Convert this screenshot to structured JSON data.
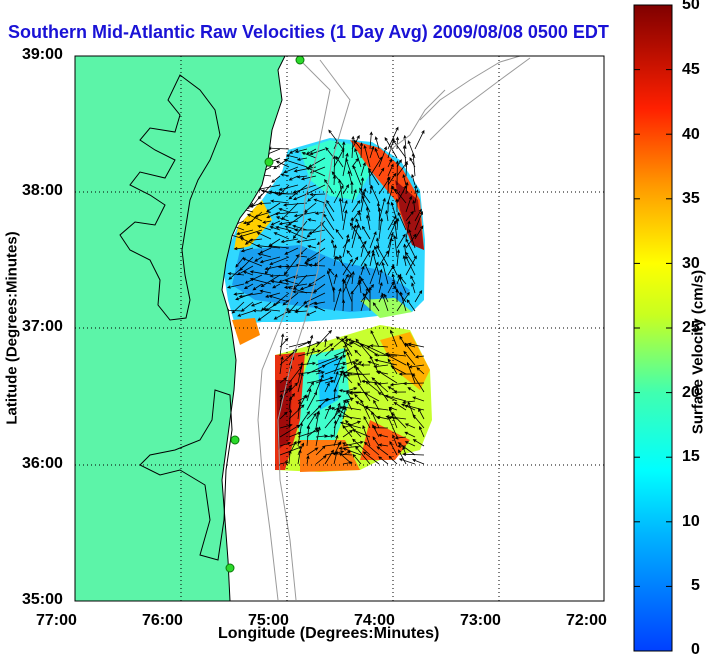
{
  "title": "Southern Mid-Atlantic Raw Velocities (1 Day Avg) 2009/08/08 0500 EDT",
  "x_axis": {
    "label": "Longitude (Degrees:Minutes)",
    "ticks": [
      "77:00",
      "76:00",
      "75:00",
      "74:00",
      "73:00",
      "72:00"
    ]
  },
  "y_axis": {
    "label": "Latitude (Degrees:Minutes)",
    "ticks": [
      "39:00",
      "38:00",
      "37:00",
      "36:00",
      "35:00"
    ]
  },
  "colorbar": {
    "label": "Surface Velocity (cm/s)",
    "ticks": [
      "50",
      "45",
      "40",
      "35",
      "30",
      "25",
      "20",
      "15",
      "10",
      "5",
      "0"
    ],
    "range": [
      0,
      50
    ],
    "colors": [
      "#0000ff",
      "#00c8ff",
      "#32ffcc",
      "#ffff00",
      "#ff8c00",
      "#ff0000",
      "#800000"
    ]
  },
  "map": {
    "lon_range": [
      -77,
      -72
    ],
    "lat_range": [
      35,
      39
    ],
    "land_color": "#5cf4a8",
    "ocean_color": "#ffffff",
    "bathymetry_color": "#9a9a9a",
    "grid": "dotted",
    "station_color": "#2bd92b"
  }
}
